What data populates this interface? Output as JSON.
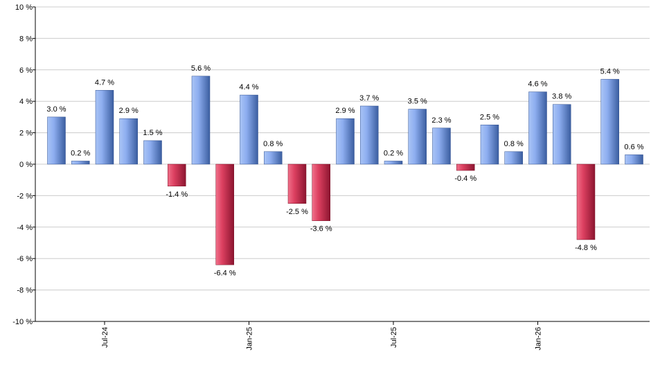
{
  "chart_data": {
    "type": "bar",
    "values": [
      3.0,
      0.2,
      4.7,
      2.9,
      1.5,
      -1.4,
      5.6,
      -6.4,
      4.4,
      0.8,
      -2.5,
      -3.6,
      2.9,
      3.7,
      0.2,
      3.5,
      2.3,
      -0.4,
      2.5,
      0.8,
      4.6,
      3.8,
      -4.8,
      5.4,
      0.6
    ],
    "data_labels": [
      "3.0 %",
      "0.2 %",
      "4.7 %",
      "2.9 %",
      "1.5 %",
      "-1.4 %",
      "5.6 %",
      "-6.4 %",
      "4.4 %",
      "0.8 %",
      "-2.5 %",
      "-3.6 %",
      "2.9 %",
      "3.7 %",
      "0.2 %",
      "3.5 %",
      "2.3 %",
      "-0.4 %",
      "2.5 %",
      "0.8 %",
      "4.6 %",
      "3.8 %",
      "-4.8 %",
      "5.4 %",
      "0.6 %"
    ],
    "x_tick_labels": [
      {
        "bar_index": 2,
        "label": "Jul-24"
      },
      {
        "bar_index": 8,
        "label": "Jan-25"
      },
      {
        "bar_index": 14,
        "label": "Jul-25"
      },
      {
        "bar_index": 20,
        "label": "Jan-26"
      }
    ],
    "y_ticks": [
      10,
      8,
      6,
      4,
      2,
      0,
      -2,
      -4,
      -6,
      -8,
      -10
    ],
    "y_tick_labels": [
      "10 %",
      "8 %",
      "6 %",
      "4 %",
      "2 %",
      "0 %",
      "-2 %",
      "-4 %",
      "-6 %",
      "-8 %",
      "-10 %"
    ],
    "ylim": [
      -10,
      10
    ],
    "grid": true,
    "legend": "none",
    "colors": {
      "positive_light": "#a9c4f5",
      "positive_dark": "#3b5ea0",
      "negative_light": "#f0708a",
      "negative_dark": "#8c1530",
      "grid": "#cccccc",
      "axis": "#000000"
    }
  }
}
